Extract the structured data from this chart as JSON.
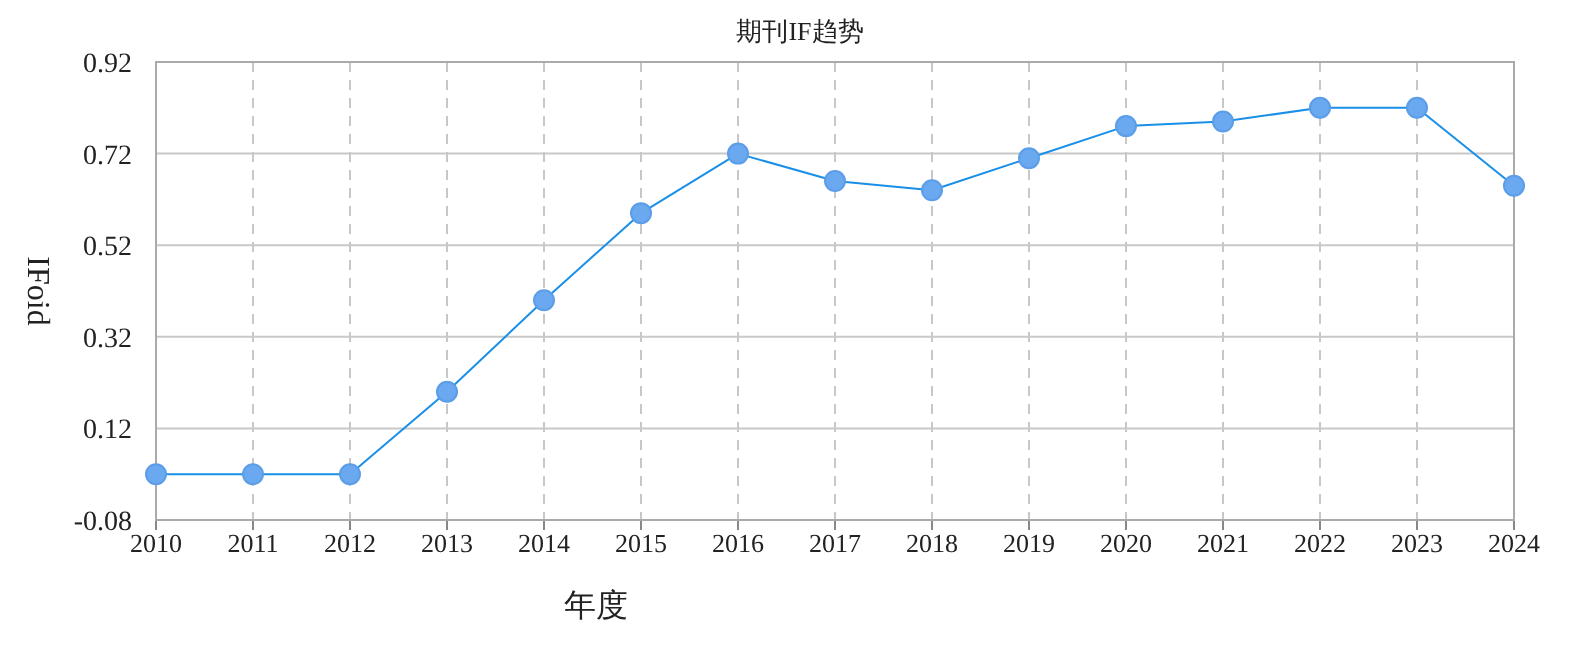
{
  "chart_data": {
    "type": "line",
    "title": "期刊IF趋势",
    "xlabel": "年度",
    "ylabel": "IFoid",
    "x": [
      2010,
      2011,
      2012,
      2013,
      2014,
      2015,
      2016,
      2017,
      2018,
      2019,
      2020,
      2021,
      2022,
      2023,
      2024
    ],
    "series": [
      {
        "color": "#1a8fe8",
        "values": [
          0.02,
          0.02,
          0.02,
          0.2,
          0.4,
          0.59,
          0.72,
          0.66,
          0.64,
          0.71,
          0.78,
          0.79,
          0.82,
          0.82,
          0.65
        ]
      }
    ],
    "xlim": [
      2010,
      2024
    ],
    "xticks": [
      2010,
      2011,
      2012,
      2013,
      2014,
      2015,
      2016,
      2017,
      2018,
      2019,
      2020,
      2021,
      2022,
      2023,
      2024
    ],
    "ylim": [
      -0.08,
      0.92
    ],
    "yticks": [
      -0.08,
      0.12,
      0.32,
      0.52,
      0.72,
      0.92
    ],
    "grid": true,
    "marker": "circle",
    "line_style": "solid"
  }
}
